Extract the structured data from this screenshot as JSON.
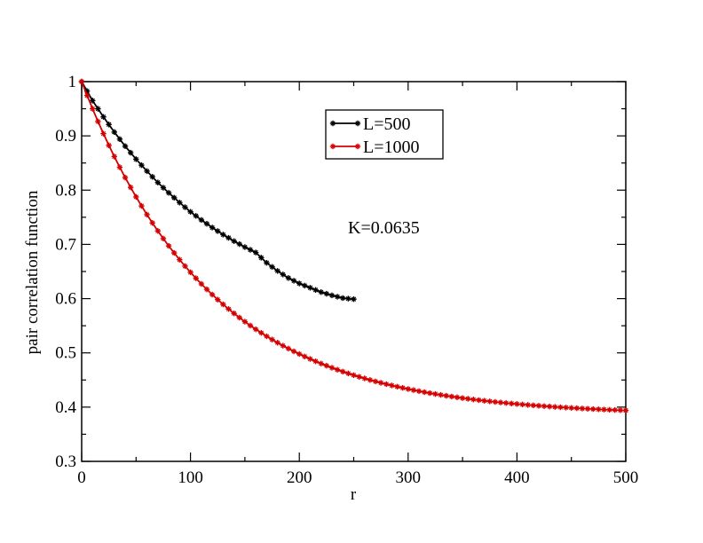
{
  "chart_data": {
    "type": "line",
    "title": "",
    "xlabel": "r",
    "ylabel": "pair correlation function",
    "xlim": [
      0,
      500
    ],
    "ylim": [
      0.3,
      1
    ],
    "xticks": [
      0,
      100,
      200,
      300,
      400,
      500
    ],
    "xtick_labels": [
      "0",
      "100",
      "200",
      "300",
      "400",
      "500"
    ],
    "yticks": [
      0.3,
      0.4,
      0.5,
      0.6,
      0.7,
      0.8,
      0.9,
      1
    ],
    "ytick_labels": [
      "0.3",
      "0.4",
      "0.5",
      "0.6",
      "0.7",
      "0.8",
      "0.9",
      "1"
    ],
    "grid": false,
    "legend_position": "top-center",
    "annotation": "K=0.0635",
    "series": [
      {
        "name": "L=500",
        "color": "#000000",
        "marker": "star",
        "x": [
          0,
          10,
          20,
          30,
          40,
          50,
          60,
          70,
          80,
          90,
          100,
          110,
          120,
          130,
          140,
          150,
          160,
          170,
          180,
          190,
          200,
          210,
          220,
          230,
          240,
          250
        ],
        "y": [
          1.0,
          0.965,
          0.935,
          0.907,
          0.881,
          0.857,
          0.835,
          0.814,
          0.795,
          0.777,
          0.76,
          0.745,
          0.731,
          0.718,
          0.706,
          0.695,
          0.685,
          0.666,
          0.651,
          0.638,
          0.628,
          0.62,
          0.612,
          0.606,
          0.601,
          0.599
        ]
      },
      {
        "name": "L=1000",
        "color": "#d40000",
        "marker": "star",
        "x": [
          0,
          10,
          20,
          30,
          40,
          50,
          60,
          70,
          80,
          90,
          100,
          110,
          120,
          130,
          140,
          150,
          160,
          170,
          180,
          190,
          200,
          210,
          220,
          230,
          240,
          250,
          260,
          270,
          280,
          290,
          300,
          310,
          320,
          330,
          340,
          350,
          360,
          370,
          380,
          390,
          400,
          410,
          420,
          430,
          440,
          450,
          460,
          470,
          480,
          490,
          500
        ],
        "y": [
          1.0,
          0.955,
          0.912,
          0.868,
          0.827,
          0.79,
          0.755,
          0.722,
          0.692,
          0.663,
          0.636,
          0.611,
          0.588,
          0.567,
          0.547,
          0.53,
          0.514,
          0.5,
          0.487,
          0.475,
          0.511,
          0.501,
          0.491,
          0.48,
          0.47,
          0.462,
          0.456,
          0.449,
          0.442,
          0.435,
          0.428,
          0.422,
          0.416,
          0.411,
          0.406,
          0.402,
          0.398,
          0.395,
          0.392,
          0.39,
          0.388,
          0.387,
          0.386,
          0.385,
          0.385,
          0.385,
          0.385,
          0.385,
          0.385,
          0.385,
          0.385
        ]
      }
    ]
  }
}
